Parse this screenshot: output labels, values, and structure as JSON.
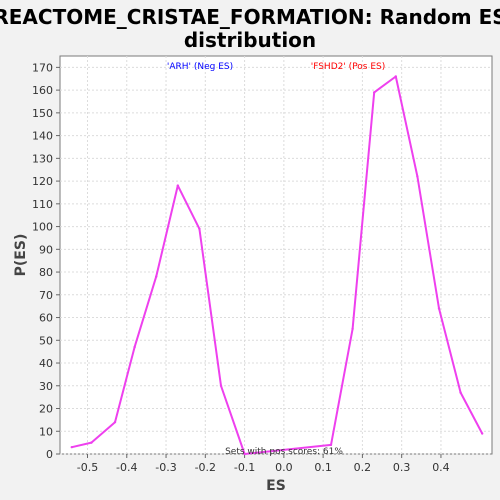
{
  "chart_data": {
    "type": "line",
    "title_lines": [
      "REACTOME_CRISTAE_FORMATION: Random ES",
      "distribution"
    ],
    "xlabel": "ES",
    "ylabel": "P(ES)",
    "xlim": [
      -0.57,
      0.53
    ],
    "ylim": [
      0,
      175
    ],
    "x_ticks": [
      -0.5,
      -0.4,
      -0.3,
      -0.2,
      -0.1,
      0.0,
      0.1,
      0.2,
      0.3,
      0.4
    ],
    "x_tick_labels": [
      "-0.5",
      "-0.4",
      "-0.3",
      "-0.2",
      "-0.1",
      "0.0",
      "0.1",
      "0.2",
      "0.3",
      "0.4"
    ],
    "y_ticks": [
      0,
      10,
      20,
      30,
      40,
      50,
      60,
      70,
      80,
      90,
      100,
      110,
      120,
      130,
      140,
      150,
      160,
      170
    ],
    "grid": true,
    "series": [
      {
        "color": "#ee40ee",
        "x": [
          -0.54,
          -0.49,
          -0.43,
          -0.38,
          -0.325,
          -0.27,
          -0.215,
          -0.16,
          -0.1,
          0.12,
          0.175,
          0.23,
          0.285,
          0.34,
          0.395,
          0.45,
          0.505
        ],
        "y": [
          3,
          5,
          14,
          47,
          78,
          118,
          99,
          30,
          0,
          4,
          55,
          159,
          166,
          122,
          64,
          27,
          9
        ]
      }
    ],
    "annotations": [
      {
        "text": "'ARH' (Neg ES)",
        "color": "#0000ff"
      },
      {
        "text": "'FSHD2' (Pos ES)",
        "color": "#ff0000"
      },
      {
        "text": "Sets with pos scores: 61%",
        "color": "#333333"
      }
    ]
  }
}
